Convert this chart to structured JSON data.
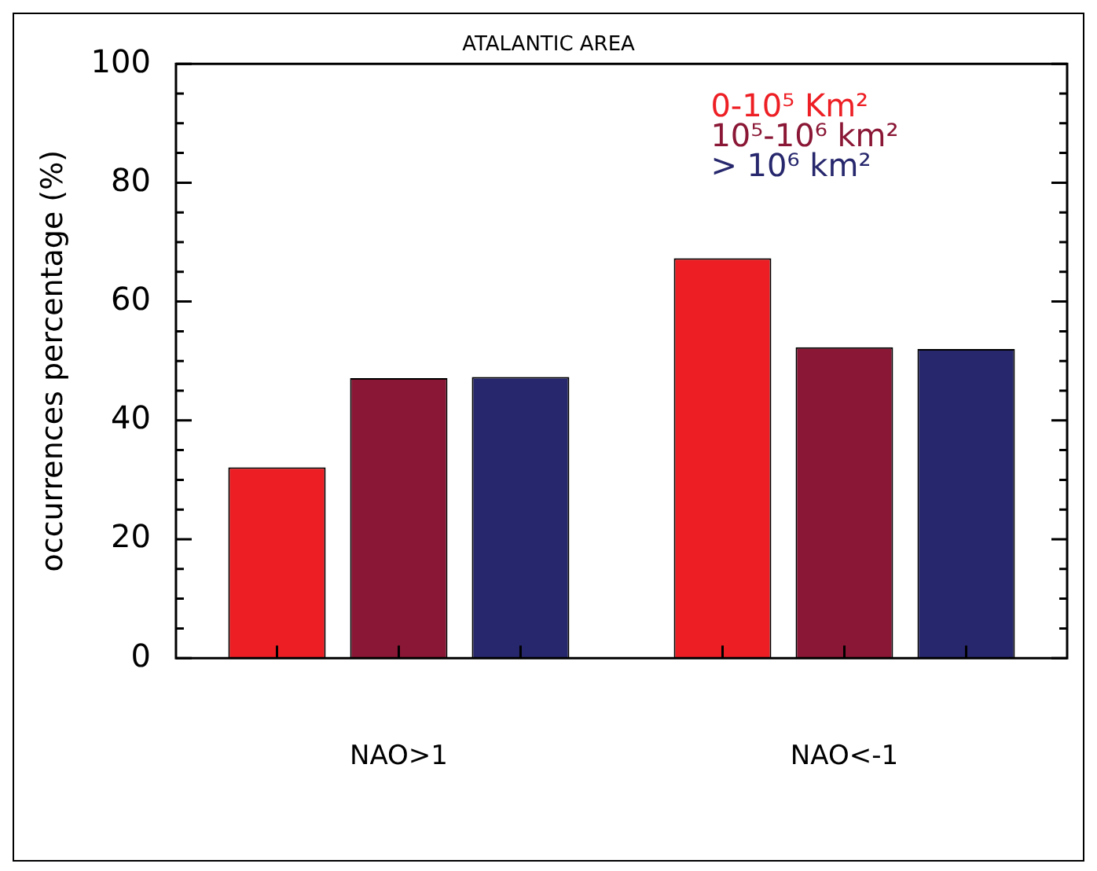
{
  "chart_data": {
    "type": "bar",
    "title": "ATALANTIC AREA",
    "ylabel": "occurrences percentage (%)",
    "categories": [
      "NAO>1",
      "NAO<-1"
    ],
    "series": [
      {
        "name": "0-10⁵ Km²",
        "color": "#ed1f24",
        "values": [
          32.1,
          67.3
        ]
      },
      {
        "name": "10⁵-10⁶ km²",
        "color": "#8a1735",
        "values": [
          47.1,
          52.3
        ]
      },
      {
        "name": "> 10⁶ km²",
        "color": "#27276d",
        "values": [
          47.3,
          52.0
        ]
      }
    ],
    "ylim": [
      0,
      100
    ],
    "yticks": [
      0,
      {
        "value": 5,
        "label": null
      },
      {
        "value": 10,
        "label": null
      },
      {
        "value": 15,
        "label": null
      },
      20,
      {
        "value": 25,
        "label": null
      },
      {
        "value": 30,
        "label": null
      },
      {
        "value": 35,
        "label": null
      },
      40,
      {
        "value": 45,
        "label": null
      },
      {
        "value": 50,
        "label": null
      },
      {
        "value": 55,
        "label": null
      },
      60,
      {
        "value": 65,
        "label": null
      },
      {
        "value": 70,
        "label": null
      },
      {
        "value": 75,
        "label": null
      },
      80,
      {
        "value": 85,
        "label": null
      },
      {
        "value": 90,
        "label": null
      },
      {
        "value": 95,
        "label": null
      },
      100
    ],
    "grid": false,
    "legend": "top right"
  }
}
